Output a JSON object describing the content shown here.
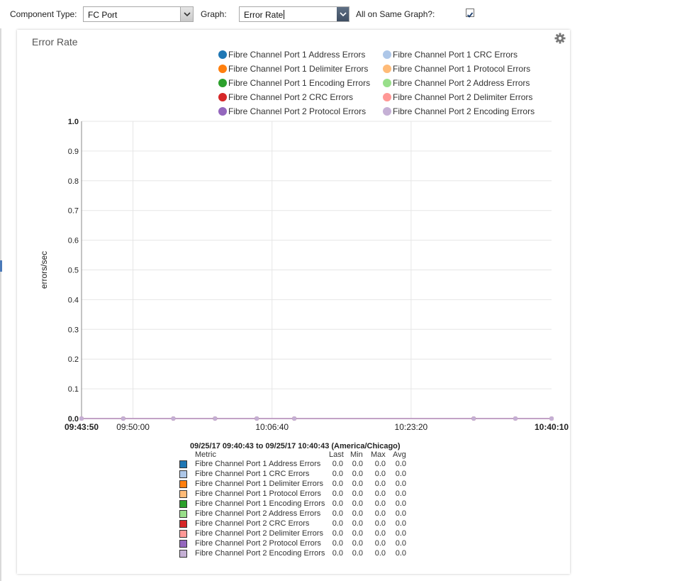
{
  "toolbar": {
    "component_type_label": "Component Type:",
    "component_type_value": "FC Port",
    "graph_label": "Graph:",
    "graph_value": "Error Rate",
    "same_graph_label": "All on Same Graph?:",
    "same_graph_checked": true
  },
  "panel": {
    "title": "Error Rate",
    "gear_icon": "gear-icon"
  },
  "colors": {
    "grid": "#e6e6e6",
    "axis": "#888888",
    "series_line": "#c5b0d5"
  },
  "chart_data": {
    "type": "line",
    "title": "Error Rate",
    "ylabel": "errors/sec",
    "xlabel": "",
    "ylim": [
      0,
      1.0
    ],
    "y_ticks": [
      "0.0",
      "0.1",
      "0.2",
      "0.3",
      "0.4",
      "0.5",
      "0.6",
      "0.7",
      "0.8",
      "0.9",
      "1.0"
    ],
    "x_ticks": [
      {
        "label": "09:43:50",
        "bold": true
      },
      {
        "label": "09:50:00",
        "bold": false
      },
      {
        "label": "10:06:40",
        "bold": false
      },
      {
        "label": "10:23:20",
        "bold": false
      },
      {
        "label": "10:40:10",
        "bold": true
      }
    ],
    "x_tick_times": [
      "09:43:50",
      "09:50:00",
      "10:06:40",
      "10:23:20",
      "10:40:10"
    ],
    "x_range": [
      "09:43:50",
      "10:40:10"
    ],
    "grid": true,
    "legend_position": "top",
    "x": [
      "09:43:50",
      "09:48:50",
      "09:54:50",
      "09:59:50",
      "10:04:50",
      "10:09:20",
      "10:30:50",
      "10:35:50",
      "10:40:10"
    ],
    "series": [
      {
        "name": "Fibre Channel Port 1 Address Errors",
        "color": "#1f77b4",
        "values": [
          0,
          0,
          0,
          0,
          0,
          0,
          0,
          0,
          0
        ]
      },
      {
        "name": "Fibre Channel Port 1 CRC Errors",
        "color": "#aec7e8",
        "values": [
          0,
          0,
          0,
          0,
          0,
          0,
          0,
          0,
          0
        ]
      },
      {
        "name": "Fibre Channel Port 1 Delimiter Errors",
        "color": "#ff7f0e",
        "values": [
          0,
          0,
          0,
          0,
          0,
          0,
          0,
          0,
          0
        ]
      },
      {
        "name": "Fibre Channel Port 1 Protocol Errors",
        "color": "#ffbb78",
        "values": [
          0,
          0,
          0,
          0,
          0,
          0,
          0,
          0,
          0
        ]
      },
      {
        "name": "Fibre Channel Port 1 Encoding Errors",
        "color": "#2ca02c",
        "values": [
          0,
          0,
          0,
          0,
          0,
          0,
          0,
          0,
          0
        ]
      },
      {
        "name": "Fibre Channel Port 2 Address Errors",
        "color": "#98df8a",
        "values": [
          0,
          0,
          0,
          0,
          0,
          0,
          0,
          0,
          0
        ]
      },
      {
        "name": "Fibre Channel Port 2 CRC Errors",
        "color": "#d62728",
        "values": [
          0,
          0,
          0,
          0,
          0,
          0,
          0,
          0,
          0
        ]
      },
      {
        "name": "Fibre Channel Port 2 Delimiter Errors",
        "color": "#ff9896",
        "values": [
          0,
          0,
          0,
          0,
          0,
          0,
          0,
          0,
          0
        ]
      },
      {
        "name": "Fibre Channel Port 2 Protocol Errors",
        "color": "#9467bd",
        "values": [
          0,
          0,
          0,
          0,
          0,
          0,
          0,
          0,
          0
        ]
      },
      {
        "name": "Fibre Channel Port 2 Encoding Errors",
        "color": "#c5b0d5",
        "values": [
          0,
          0,
          0,
          0,
          0,
          0,
          0,
          0,
          0
        ]
      }
    ]
  },
  "summary": {
    "title": "09/25/17 09:40:43 to 09/25/17 10:40:43 (America/Chicago)",
    "headers": {
      "metric": "Metric",
      "last": "Last",
      "min": "Min",
      "max": "Max",
      "avg": "Avg"
    },
    "rows": [
      {
        "name": "Fibre Channel Port 1 Address Errors",
        "color": "#1f77b4",
        "last": "0.0",
        "min": "0.0",
        "max": "0.0",
        "avg": "0.0"
      },
      {
        "name": "Fibre Channel Port 1 CRC Errors",
        "color": "#aec7e8",
        "last": "0.0",
        "min": "0.0",
        "max": "0.0",
        "avg": "0.0"
      },
      {
        "name": "Fibre Channel Port 1 Delimiter Errors",
        "color": "#ff7f0e",
        "last": "0.0",
        "min": "0.0",
        "max": "0.0",
        "avg": "0.0"
      },
      {
        "name": "Fibre Channel Port 1 Protocol Errors",
        "color": "#ffbb78",
        "last": "0.0",
        "min": "0.0",
        "max": "0.0",
        "avg": "0.0"
      },
      {
        "name": "Fibre Channel Port 1 Encoding Errors",
        "color": "#2ca02c",
        "last": "0.0",
        "min": "0.0",
        "max": "0.0",
        "avg": "0.0"
      },
      {
        "name": "Fibre Channel Port 2 Address Errors",
        "color": "#98df8a",
        "last": "0.0",
        "min": "0.0",
        "max": "0.0",
        "avg": "0.0"
      },
      {
        "name": "Fibre Channel Port 2 CRC Errors",
        "color": "#d62728",
        "last": "0.0",
        "min": "0.0",
        "max": "0.0",
        "avg": "0.0"
      },
      {
        "name": "Fibre Channel Port 2 Delimiter Errors",
        "color": "#ff9896",
        "last": "0.0",
        "min": "0.0",
        "max": "0.0",
        "avg": "0.0"
      },
      {
        "name": "Fibre Channel Port 2 Protocol Errors",
        "color": "#9467bd",
        "last": "0.0",
        "min": "0.0",
        "max": "0.0",
        "avg": "0.0"
      },
      {
        "name": "Fibre Channel Port 2 Encoding Errors",
        "color": "#c5b0d5",
        "last": "0.0",
        "min": "0.0",
        "max": "0.0",
        "avg": "0.0"
      }
    ]
  }
}
